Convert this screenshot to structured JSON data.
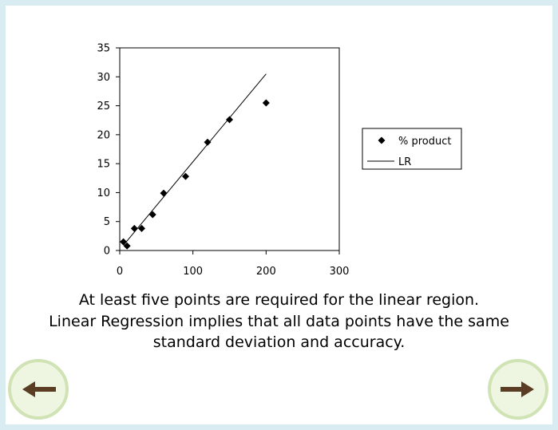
{
  "chart_data": {
    "type": "scatter",
    "title": "",
    "xlabel": "",
    "ylabel": "",
    "xlim": [
      0,
      300
    ],
    "ylim": [
      0,
      35
    ],
    "x_ticks": [
      "0",
      "100",
      "200",
      "300"
    ],
    "y_ticks": [
      "0",
      "5",
      "10",
      "15",
      "20",
      "25",
      "30",
      "35"
    ],
    "grid": false,
    "legend_position": "right",
    "series": [
      {
        "name": "% product",
        "marker": "diamond",
        "x": [
          5,
          10,
          20,
          30,
          45,
          60,
          90,
          120,
          150,
          200
        ],
        "y": [
          1.5,
          0.8,
          3.8,
          3.8,
          6.2,
          9.9,
          12.8,
          18.7,
          22.6,
          25.5
        ]
      },
      {
        "name": "LR",
        "kind": "line",
        "x": [
          5,
          200
        ],
        "y": [
          0.9,
          30.5
        ]
      }
    ]
  },
  "caption": {
    "line1": "At least five points are required for the linear region.",
    "line2": "Linear Regression implies that all data points have the same",
    "line3": "standard deviation and accuracy."
  },
  "nav": {
    "prev_icon": "arrow-left-icon",
    "next_icon": "arrow-right-icon",
    "arrow_color": "#5a3d22",
    "ring_color": "#cfe3b4",
    "fill_color": "#eef5e0"
  }
}
